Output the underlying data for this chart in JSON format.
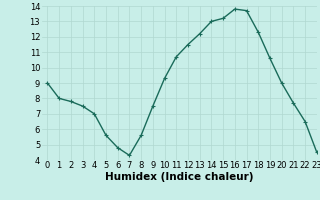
{
  "x": [
    0,
    1,
    2,
    3,
    4,
    5,
    6,
    7,
    8,
    9,
    10,
    11,
    12,
    13,
    14,
    15,
    16,
    17,
    18,
    19,
    20,
    21,
    22,
    23
  ],
  "y": [
    9.0,
    8.0,
    7.8,
    7.5,
    7.0,
    5.6,
    4.8,
    4.3,
    5.6,
    7.5,
    9.3,
    10.7,
    11.5,
    12.2,
    13.0,
    13.2,
    13.8,
    13.7,
    12.3,
    10.6,
    9.0,
    7.7,
    6.5,
    4.5
  ],
  "line_color": "#1a6b5a",
  "marker": "+",
  "marker_size": 3,
  "bg_color": "#c8eee8",
  "grid_color": "#b0d8d0",
  "xlabel": "Humidex (Indice chaleur)",
  "ylim": [
    4,
    14
  ],
  "xlim": [
    -0.5,
    23
  ],
  "yticks": [
    4,
    5,
    6,
    7,
    8,
    9,
    10,
    11,
    12,
    13,
    14
  ],
  "xticks": [
    0,
    1,
    2,
    3,
    4,
    5,
    6,
    7,
    8,
    9,
    10,
    11,
    12,
    13,
    14,
    15,
    16,
    17,
    18,
    19,
    20,
    21,
    22,
    23
  ],
  "tick_label_fontsize": 6,
  "xlabel_fontsize": 7.5
}
